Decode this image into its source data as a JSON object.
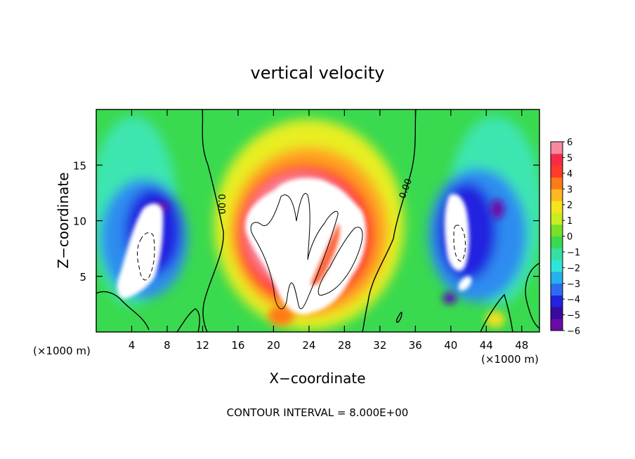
{
  "chart_data": {
    "type": "heatmap",
    "title": "vertical velocity",
    "xlabel": "X−coordinate",
    "ylabel": "Z−coordinate",
    "x_unit_label": "(×1000 m)",
    "y_unit_label": "(×1000 m)",
    "footer": "CONTOUR INTERVAL = 8.000E+00",
    "xlim": [
      0,
      50
    ],
    "ylim": [
      0,
      20
    ],
    "xticks": [
      4,
      8,
      12,
      16,
      20,
      24,
      28,
      32,
      36,
      40,
      44,
      48
    ],
    "yticks": [
      5,
      10,
      15
    ],
    "colorbar": {
      "range": [
        -6,
        6
      ],
      "tick_values": [
        6,
        5,
        4,
        3,
        2,
        1,
        0,
        -1,
        -2,
        -3,
        -4,
        -5,
        -6
      ],
      "tick_labels": [
        "6",
        "5",
        "4",
        "3",
        "2",
        "1",
        "0",
        "−1",
        "−2",
        "−3",
        "−4",
        "−5",
        "−6"
      ],
      "colors": [
        "#6a0aa8",
        "#3a0aa0",
        "#2222e0",
        "#2d6cf0",
        "#26b0ee",
        "#2ee6d8",
        "#34e0a0",
        "#3ada50",
        "#78e028",
        "#c8ee20",
        "#f6e41c",
        "#ffb820",
        "#ff7a18",
        "#ff3a2a",
        "#f82a48",
        "#f88aa0"
      ]
    },
    "contour_labels": [
      {
        "text": "0.00",
        "x": 13.8,
        "y": 11.5
      },
      {
        "text": "0.00",
        "x": 35.2,
        "y": 12.8
      }
    ],
    "features": [
      {
        "kind": "updraft",
        "x": 23.5,
        "y": 9,
        "w": 7.5,
        "note": "central updraft, values > 6"
      },
      {
        "kind": "downdraft",
        "x": 5.5,
        "y": 8,
        "w": 6
      },
      {
        "kind": "downdraft",
        "x": 40.5,
        "y": 8,
        "w": 6
      }
    ]
  }
}
